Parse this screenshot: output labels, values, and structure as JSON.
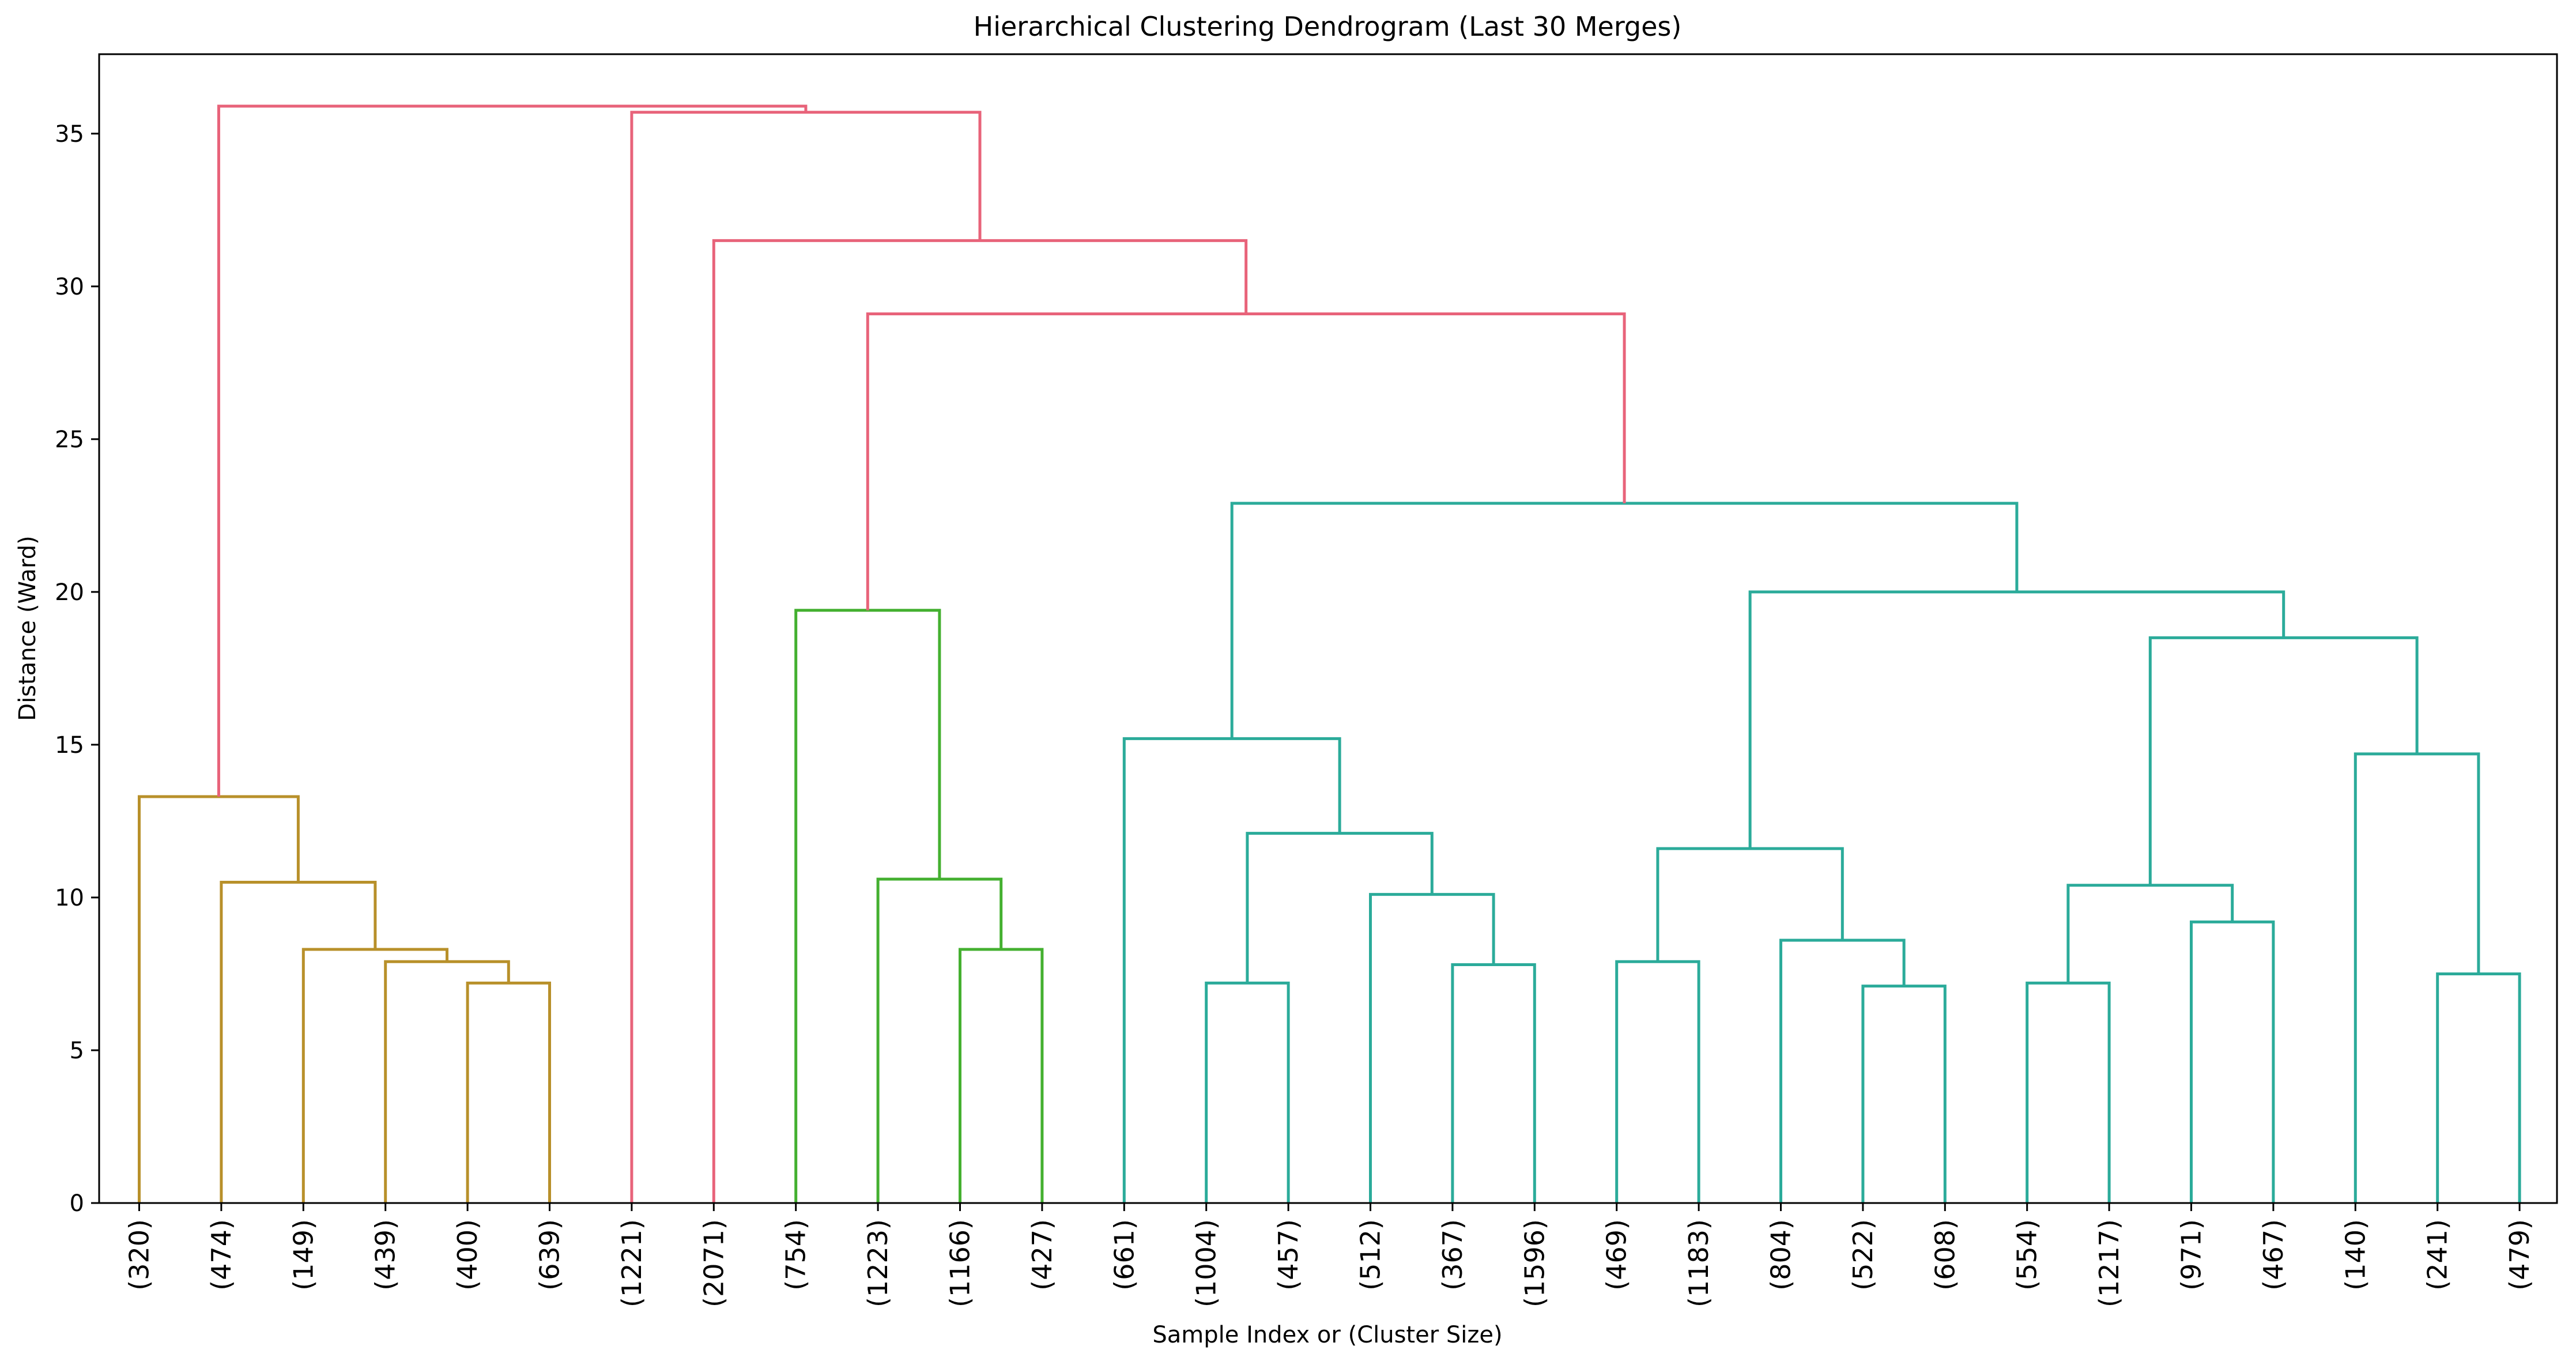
{
  "chart_data": {
    "type": "dendrogram",
    "title": "Hierarchical Clustering Dendrogram (Last 30 Merges)",
    "xlabel": "Sample Index or (Cluster Size)",
    "ylabel": "Distance (Ward)",
    "ylim": [
      0,
      37.6
    ],
    "yticks": [
      0,
      5,
      10,
      15,
      20,
      25,
      30,
      35
    ],
    "grid": false,
    "leaves": [
      "(320)",
      "(474)",
      "(149)",
      "(439)",
      "(400)",
      "(639)",
      "(1221)",
      "(2071)",
      "(754)",
      "(1223)",
      "(1166)",
      "(427)",
      "(661)",
      "(1004)",
      "(457)",
      "(512)",
      "(367)",
      "(1596)",
      "(469)",
      "(1183)",
      "(804)",
      "(522)",
      "(608)",
      "(554)",
      "(1217)",
      "(971)",
      "(467)",
      "(140)",
      "(241)",
      "(479)"
    ],
    "colors": {
      "root": "#e8637a",
      "cluster_olive": "#b8902a",
      "cluster_green": "#44b030",
      "cluster_teal": "#2bab9a"
    },
    "merges": [
      {
        "left": "L4",
        "right": "L5",
        "height": 7.2,
        "color": "cluster_olive"
      },
      {
        "left": "L3",
        "right": "M0",
        "height": 7.9,
        "color": "cluster_olive"
      },
      {
        "left": "L2",
        "right": "M1",
        "height": 8.3,
        "color": "cluster_olive"
      },
      {
        "left": "L1",
        "right": "M2",
        "height": 10.5,
        "color": "cluster_olive"
      },
      {
        "left": "L0",
        "right": "M3",
        "height": 13.3,
        "color": "cluster_olive"
      },
      {
        "left": "L10",
        "right": "L11",
        "height": 8.3,
        "color": "cluster_green"
      },
      {
        "left": "L9",
        "right": "M5",
        "height": 10.6,
        "color": "cluster_green"
      },
      {
        "left": "L8",
        "right": "M6",
        "height": 19.4,
        "color": "cluster_green"
      },
      {
        "left": "L13",
        "right": "L14",
        "height": 7.2,
        "color": "cluster_teal"
      },
      {
        "left": "L16",
        "right": "L17",
        "height": 7.8,
        "color": "cluster_teal"
      },
      {
        "left": "L15",
        "right": "M9",
        "height": 10.1,
        "color": "cluster_teal"
      },
      {
        "left": "M8",
        "right": "M10",
        "height": 12.1,
        "color": "cluster_teal"
      },
      {
        "left": "L12",
        "right": "M11",
        "height": 15.2,
        "color": "cluster_teal"
      },
      {
        "left": "L18",
        "right": "L19",
        "height": 7.9,
        "color": "cluster_teal"
      },
      {
        "left": "L21",
        "right": "L22",
        "height": 7.1,
        "color": "cluster_teal"
      },
      {
        "left": "L20",
        "right": "M14",
        "height": 8.6,
        "color": "cluster_teal"
      },
      {
        "left": "M13",
        "right": "M15",
        "height": 11.6,
        "color": "cluster_teal"
      },
      {
        "left": "L23",
        "right": "L24",
        "height": 7.2,
        "color": "cluster_teal"
      },
      {
        "left": "L25",
        "right": "L26",
        "height": 9.2,
        "color": "cluster_teal"
      },
      {
        "left": "M17",
        "right": "M18",
        "height": 10.4,
        "color": "cluster_teal"
      },
      {
        "left": "L28",
        "right": "L29",
        "height": 7.5,
        "color": "cluster_teal"
      },
      {
        "left": "L27",
        "right": "M20",
        "height": 14.7,
        "color": "cluster_teal"
      },
      {
        "left": "M19",
        "right": "M21",
        "height": 18.5,
        "color": "cluster_teal"
      },
      {
        "left": "M16",
        "right": "M22",
        "height": 20.0,
        "color": "cluster_teal"
      },
      {
        "left": "M12",
        "right": "M23",
        "height": 22.9,
        "color": "cluster_teal"
      },
      {
        "left": "M7",
        "right": "M24",
        "height": 29.1,
        "color": "root"
      },
      {
        "left": "L7",
        "right": "M25",
        "height": 31.5,
        "color": "root"
      },
      {
        "left": "L6",
        "right": "M26",
        "height": 35.7,
        "color": "root"
      },
      {
        "left": "M4",
        "right": "M27",
        "height": 35.9,
        "color": "root"
      }
    ]
  }
}
